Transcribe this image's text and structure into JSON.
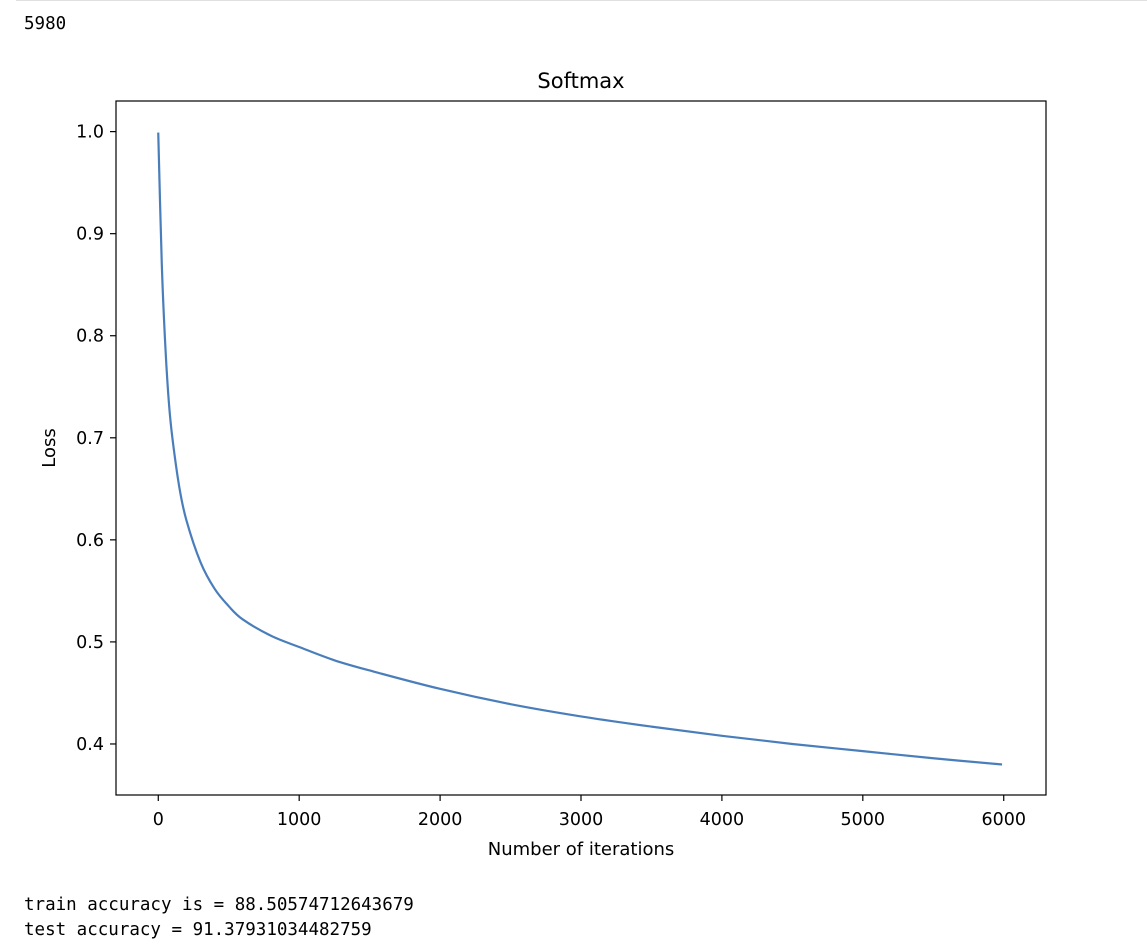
{
  "output": {
    "top_value": "5980",
    "train_line": "train accuracy is = 88.50574712643679",
    "test_line": "test accuracy = 91.37931034482759"
  },
  "chart_data": {
    "type": "line",
    "title": "Softmax",
    "xlabel": "Number of iterations",
    "ylabel": "Loss",
    "xlim": [
      -300,
      6300
    ],
    "ylim": [
      0.35,
      1.03
    ],
    "xticks": [
      0,
      1000,
      2000,
      3000,
      4000,
      5000,
      6000
    ],
    "xtick_labels": [
      "0",
      "1000",
      "2000",
      "3000",
      "4000",
      "5000",
      "6000"
    ],
    "yticks": [
      0.4,
      0.5,
      0.6,
      0.7,
      0.8,
      0.9,
      1.0
    ],
    "ytick_labels": [
      "0.4",
      "0.5",
      "0.6",
      "0.7",
      "0.8",
      "0.9",
      "1.0"
    ],
    "grid": false,
    "line_color": "#4a7ebb",
    "series": [
      {
        "x": [
          0,
          25,
          50,
          75,
          100,
          150,
          200,
          300,
          400,
          500,
          600,
          800,
          1000,
          1250,
          1500,
          2000,
          2500,
          3000,
          3500,
          4000,
          4500,
          5000,
          5500,
          5980
        ],
        "values": [
          0.998,
          0.87,
          0.79,
          0.735,
          0.7,
          0.651,
          0.619,
          0.578,
          0.552,
          0.535,
          0.522,
          0.506,
          0.495,
          0.482,
          0.472,
          0.454,
          0.439,
          0.427,
          0.417,
          0.408,
          0.4,
          0.393,
          0.386,
          0.38
        ]
      }
    ]
  }
}
